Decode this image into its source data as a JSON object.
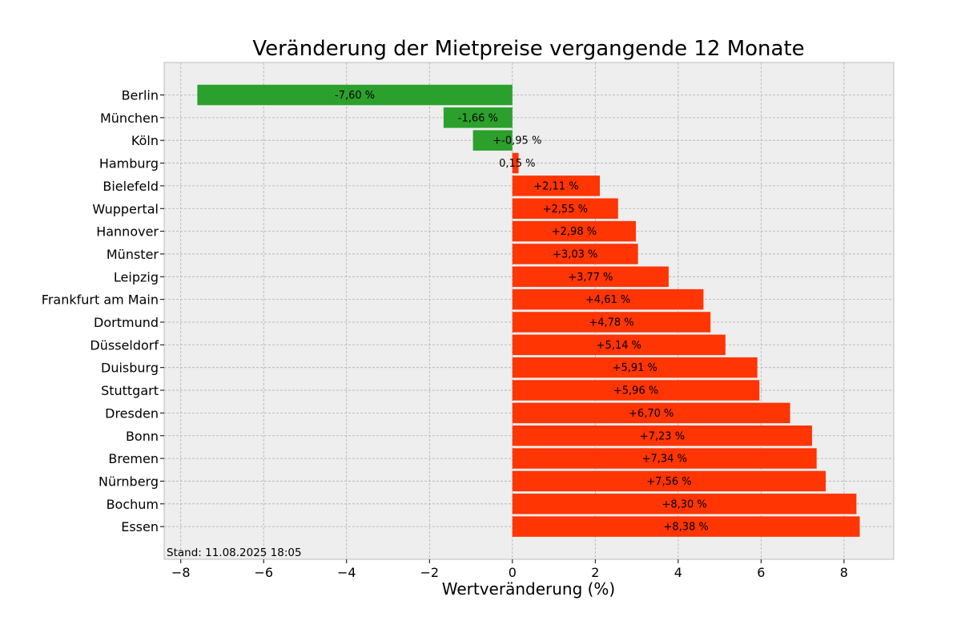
{
  "chart_data": {
    "type": "bar",
    "orientation": "horizontal",
    "title": "Veränderung der Mietpreise vergangende 12 Monate",
    "xlabel": "Wertveränderung (%)",
    "ylabel": "",
    "xlim": [
      -8.4,
      9.2
    ],
    "xticks": [
      -8,
      -6,
      -4,
      -2,
      0,
      2,
      4,
      6,
      8
    ],
    "xtick_labels": [
      "−8",
      "−6",
      "−4",
      "−2",
      "0",
      "2",
      "4",
      "6",
      "8"
    ],
    "grid": true,
    "categories": [
      "Berlin",
      "München",
      "Köln",
      "Hamburg",
      "Bielefeld",
      "Wuppertal",
      "Hannover",
      "Münster",
      "Leipzig",
      "Frankfurt am Main",
      "Dortmund",
      "Düsseldorf",
      "Duisburg",
      "Stuttgart",
      "Dresden",
      "Bonn",
      "Bremen",
      "Nürnberg",
      "Bochum",
      "Essen"
    ],
    "values": [
      -7.6,
      -1.66,
      -0.95,
      0.15,
      2.11,
      2.55,
      2.98,
      3.03,
      3.77,
      4.61,
      4.78,
      5.14,
      5.91,
      5.96,
      6.7,
      7.23,
      7.34,
      7.56,
      8.3,
      8.38
    ],
    "data_labels": [
      "-7,60 %",
      "-1,66 %",
      "+-0,95 %",
      "0,15 %",
      "+2,11 %",
      "+2,55 %",
      "+2,98 %",
      "+3,03 %",
      "+3,77 %",
      "+4,61 %",
      "+4,78 %",
      "+5,14 %",
      "+5,91 %",
      "+5,96 %",
      "+6,70 %",
      "+7,23 %",
      "+7,34 %",
      "+7,56 %",
      "+8,30 %",
      "+8,38 %"
    ],
    "colors": {
      "positive": "#ff3503",
      "negative": "#2ca02c",
      "plot_bg": "#eeeeee",
      "grid": "#b0b0b0",
      "frame": "#bcbcbc"
    },
    "footnote": "Stand: 11.08.2025 18:05"
  }
}
